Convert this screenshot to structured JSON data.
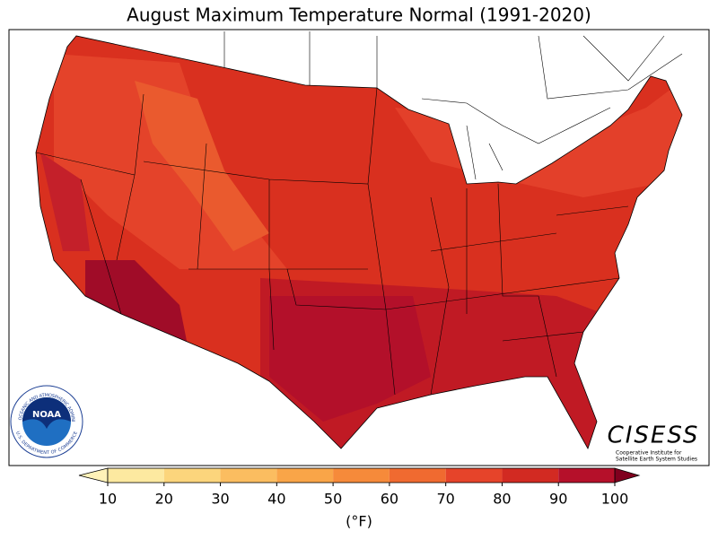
{
  "title": "August Maximum Temperature Normal (1991-2020)",
  "colorbar": {
    "ticks": [
      10,
      20,
      30,
      40,
      50,
      60,
      70,
      80,
      90,
      100
    ],
    "colors": [
      "#fde9a0",
      "#fcd57c",
      "#fbbd60",
      "#f9a548",
      "#f68a3a",
      "#f06a30",
      "#e6442a",
      "#d22a22",
      "#b5102a"
    ],
    "under_color": "#fff2b8",
    "over_color": "#80001e",
    "unit": "(°F)"
  },
  "logos": {
    "noaa": {
      "name": "NOAA",
      "ring_top": "NATIONAL OCEANIC AND ATMOSPHERIC ADMINISTRATION",
      "ring_bottom": "U.S. DEPARTMENT OF COMMERCE"
    },
    "cisess": {
      "name": "CISESS",
      "line1": "Cooperative Institute for",
      "line2": "Satellite Earth System Studies"
    }
  }
}
